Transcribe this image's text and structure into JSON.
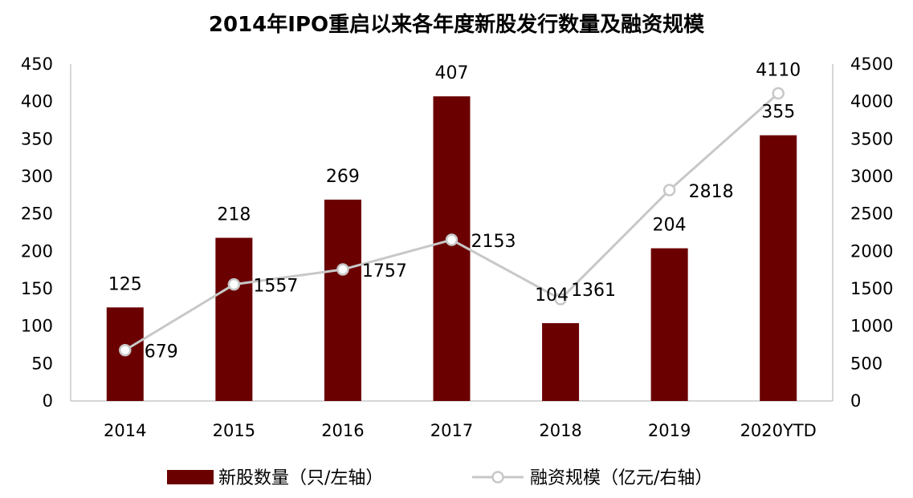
{
  "chart_data": {
    "type": "bar",
    "title": "2014年IPO重启以来各年度新股发行数量及融资规模",
    "categories": [
      "2014",
      "2015",
      "2016",
      "2017",
      "2018",
      "2019",
      "2020YTD"
    ],
    "series": [
      {
        "name": "新股数量（只/左轴）",
        "type": "bar",
        "axis": "left",
        "values": [
          125,
          218,
          269,
          407,
          104,
          204,
          355
        ],
        "color": "#6b0000"
      },
      {
        "name": "融资规模（亿元/右轴）",
        "type": "line",
        "axis": "right",
        "values": [
          679,
          1557,
          1757,
          2153,
          1361,
          2818,
          4110
        ],
        "color": "#c8c8c8"
      }
    ],
    "y_left": {
      "lim": [
        0,
        450
      ],
      "ticks": [
        "0",
        "50",
        "100",
        "150",
        "200",
        "250",
        "300",
        "350",
        "400",
        "450"
      ]
    },
    "y_right": {
      "lim": [
        0,
        4500
      ],
      "ticks": [
        "0",
        "500",
        "1000",
        "1500",
        "2000",
        "2500",
        "3000",
        "3500",
        "4000",
        "4500"
      ]
    },
    "grid": false,
    "legend_position": "bottom"
  }
}
